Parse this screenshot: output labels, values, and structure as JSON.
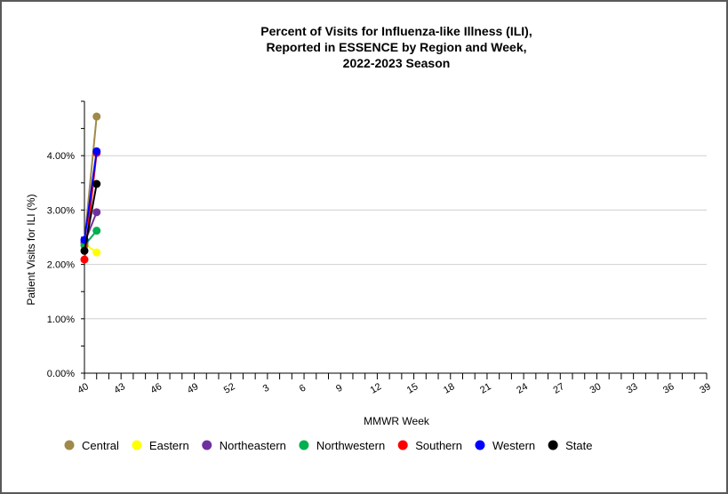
{
  "chart_data": {
    "type": "line",
    "title": [
      "Percent of Visits for Influenza-like Illness (ILI),",
      "Reported in ESSENCE by Region and Week,",
      "2022-2023 Season"
    ],
    "xlabel": "MMWR Week",
    "ylabel": "Patient Visits for ILI (%)",
    "x_weeks": [
      40,
      41,
      42,
      43,
      44,
      45,
      46,
      47,
      48,
      49,
      50,
      51,
      52,
      1,
      2,
      3,
      4,
      5,
      6,
      7,
      8,
      9,
      10,
      11,
      12,
      13,
      14,
      15,
      16,
      17,
      18,
      19,
      20,
      21,
      22,
      23,
      24,
      25,
      26,
      27,
      28,
      29,
      30,
      31,
      32,
      33,
      34,
      35,
      36,
      37,
      38,
      39
    ],
    "x_tick_labels": [
      "40",
      "43",
      "46",
      "49",
      "52",
      "3",
      "6",
      "9",
      "12",
      "15",
      "18",
      "21",
      "24",
      "27",
      "30",
      "33",
      "36",
      "39"
    ],
    "y_ticks": [
      "0.00%",
      "1.00%",
      "2.00%",
      "3.00%",
      "4.00%"
    ],
    "ylim": [
      0,
      5
    ],
    "grid": "horizontal",
    "legend_position": "bottom",
    "series": [
      {
        "name": "Central",
        "color": "#a08a4a",
        "x": [
          40,
          41
        ],
        "values": [
          2.42,
          4.72
        ]
      },
      {
        "name": "Eastern",
        "color": "#ffff00",
        "x": [
          40,
          41
        ],
        "values": [
          2.38,
          2.22
        ]
      },
      {
        "name": "Northeastern",
        "color": "#7030a0",
        "x": [
          40,
          41
        ],
        "values": [
          2.4,
          2.96
        ]
      },
      {
        "name": "Northwestern",
        "color": "#00b050",
        "x": [
          40,
          41
        ],
        "values": [
          2.35,
          2.62
        ]
      },
      {
        "name": "Southern",
        "color": "#ff0000",
        "x": [
          40,
          41
        ],
        "values": [
          2.09,
          4.05
        ]
      },
      {
        "name": "Western",
        "color": "#0000ff",
        "x": [
          40,
          41
        ],
        "values": [
          2.45,
          4.08
        ]
      },
      {
        "name": "State",
        "color": "#000000",
        "x": [
          40,
          41
        ],
        "values": [
          2.25,
          3.48
        ]
      }
    ]
  }
}
